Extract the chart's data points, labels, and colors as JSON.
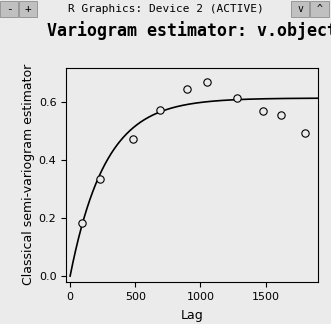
{
  "title": "Variogram estimator: v.object",
  "xlabel": "Lag",
  "ylabel": "Classical semi-variogram estimator",
  "scatter_x": [
    90,
    230,
    480,
    690,
    900,
    1050,
    1280,
    1480,
    1620,
    1800
  ],
  "scatter_y": [
    0.185,
    0.335,
    0.475,
    0.575,
    0.645,
    0.67,
    0.615,
    0.57,
    0.555,
    0.495
  ],
  "curve_nugget": 0.0,
  "curve_sill": 0.615,
  "curve_range": 270,
  "xlim": [
    -30,
    1900
  ],
  "ylim": [
    -0.02,
    0.72
  ],
  "xticks": [
    0,
    500,
    1000,
    1500
  ],
  "yticks": [
    0.0,
    0.2,
    0.4,
    0.6
  ],
  "window_bg": "#c0c0c0",
  "plot_area_bg": "#ebebeb",
  "line_color": "#000000",
  "scatter_facecolor": "#ebebeb",
  "scatter_edge_color": "#000000",
  "title_fontsize": 12,
  "label_fontsize": 9,
  "tick_fontsize": 8,
  "title_fontweight": "bold",
  "titlebar_text": "R Graphics: Device 2 (ACTIVE)",
  "titlebar_fontsize": 8
}
